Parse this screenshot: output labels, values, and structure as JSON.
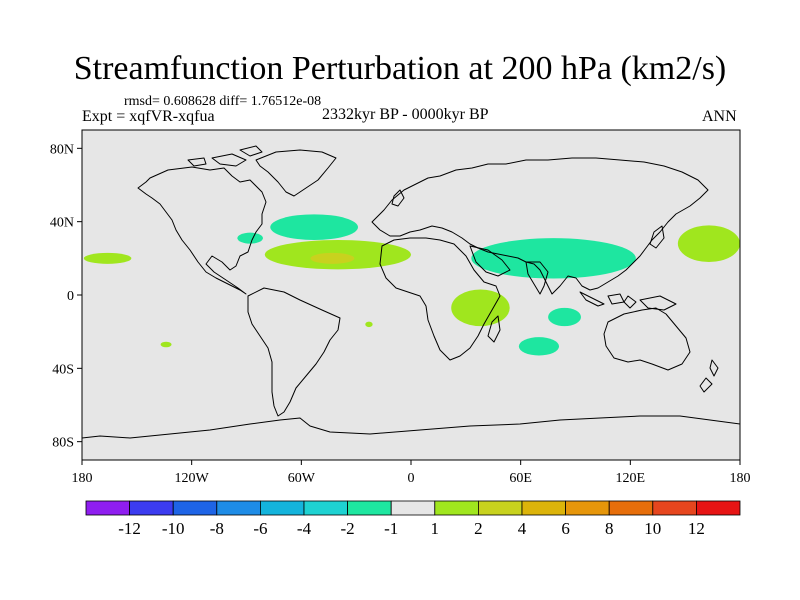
{
  "chart_data": {
    "type": "contour-map",
    "title": "Streamfunction Perturbation at 200 hPa (km2/s)",
    "stats_text": "rmsd= 0.608628 diff= 1.76512e-08",
    "experiment_text": "Expt = xqfVR-xqfua",
    "period_text": "2332kyr BP - 0000kyr BP",
    "season_text": "ANN",
    "xlim": [
      -180,
      180
    ],
    "ylim": [
      -90,
      90
    ],
    "x_ticks": [
      {
        "value": -180,
        "label": "180"
      },
      {
        "value": -120,
        "label": "120W"
      },
      {
        "value": -60,
        "label": "60W"
      },
      {
        "value": 0,
        "label": "0"
      },
      {
        "value": 60,
        "label": "60E"
      },
      {
        "value": 120,
        "label": "120E"
      },
      {
        "value": 180,
        "label": "180"
      }
    ],
    "y_ticks": [
      {
        "value": 80,
        "label": "80N"
      },
      {
        "value": 40,
        "label": "40N"
      },
      {
        "value": 0,
        "label": "0"
      },
      {
        "value": -40,
        "label": "40S"
      },
      {
        "value": -80,
        "label": "80S"
      }
    ],
    "colorbar": {
      "colors": [
        "#8f1ef0",
        "#3c3cf0",
        "#1e64e6",
        "#1e8ce6",
        "#14b4dc",
        "#1ed2d2",
        "#1ee6a0",
        "#e6e6e6",
        "#a0e61e",
        "#c8d21e",
        "#dcb40a",
        "#e6960a",
        "#e66e0a",
        "#e6461e",
        "#e61414"
      ],
      "levels": [
        "-12",
        "-10",
        "-8",
        "-6",
        "-4",
        "-2",
        "-1",
        "1",
        "2",
        "4",
        "6",
        "8",
        "10",
        "12"
      ]
    },
    "anomalies": [
      {
        "name": "north-atlantic-negative",
        "sign": "negative",
        "level_bin": "-2 to -1",
        "lon": -53,
        "lat": 37,
        "lon_half_width": 24,
        "lat_half_height": 7
      },
      {
        "name": "west-atlantic-negative",
        "sign": "negative",
        "level_bin": "-2 to -1",
        "lon": -88,
        "lat": 31,
        "lon_half_width": 7,
        "lat_half_height": 3
      },
      {
        "name": "central-atlantic-positive",
        "sign": "positive",
        "level_bin": "1 to 2",
        "lon": -40,
        "lat": 22,
        "lon_half_width": 40,
        "lat_half_height": 8
      },
      {
        "name": "central-atlantic-core",
        "sign": "positive",
        "level_bin": "2 to 4",
        "lon": -43,
        "lat": 20,
        "lon_half_width": 12,
        "lat_half_height": 3
      },
      {
        "name": "north-pacific-east-positive",
        "sign": "positive",
        "level_bin": "1 to 2",
        "lon": -166,
        "lat": 20,
        "lon_half_width": 13,
        "lat_half_height": 3
      },
      {
        "name": "north-pacific-west-positive",
        "sign": "positive",
        "level_bin": "1 to 2",
        "lon": 163,
        "lat": 28,
        "lon_half_width": 17,
        "lat_half_height": 10
      },
      {
        "name": "asia-negative",
        "sign": "negative",
        "level_bin": "-2 to -1",
        "lon": 78,
        "lat": 20,
        "lon_half_width": 45,
        "lat_half_height": 11
      },
      {
        "name": "east-africa-positive",
        "sign": "positive",
        "level_bin": "1 to 2",
        "lon": 38,
        "lat": -7,
        "lon_half_width": 16,
        "lat_half_height": 10
      },
      {
        "name": "indian-ocean-negative-north",
        "sign": "negative",
        "level_bin": "-2 to -1",
        "lon": 84,
        "lat": -12,
        "lon_half_width": 9,
        "lat_half_height": 5
      },
      {
        "name": "indian-ocean-negative-south",
        "sign": "negative",
        "level_bin": "-2 to -1",
        "lon": 70,
        "lat": -28,
        "lon_half_width": 11,
        "lat_half_height": 5
      },
      {
        "name": "south-atlantic-small-positive",
        "sign": "positive",
        "level_bin": "1 to 2",
        "lon": -23,
        "lat": -16,
        "lon_half_width": 2,
        "lat_half_height": 1.5
      },
      {
        "name": "south-pacific-small-positive",
        "sign": "positive",
        "level_bin": "1 to 2",
        "lon": -134,
        "lat": -27,
        "lon_half_width": 3,
        "lat_half_height": 1.5
      }
    ]
  }
}
